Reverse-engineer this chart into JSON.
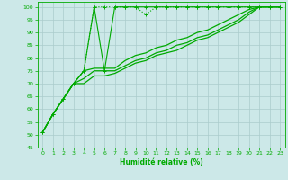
{
  "background_color": "#cce8e8",
  "grid_color": "#aacccc",
  "line_color": "#00aa00",
  "xlabel": "Humidité relative (%)",
  "ylim": [
    45,
    102
  ],
  "xlim": [
    -0.5,
    23.5
  ],
  "yticks": [
    45,
    50,
    55,
    60,
    65,
    70,
    75,
    80,
    85,
    90,
    95,
    100
  ],
  "xticks": [
    0,
    1,
    2,
    3,
    4,
    5,
    6,
    7,
    8,
    9,
    10,
    11,
    12,
    13,
    14,
    15,
    16,
    17,
    18,
    19,
    20,
    21,
    22,
    23
  ],
  "curves": [
    {
      "x": [
        0,
        1,
        2,
        3,
        4,
        5,
        6,
        7,
        8,
        9,
        10,
        11,
        12,
        13,
        14,
        15,
        16,
        17,
        18,
        19,
        20,
        21,
        22,
        23
      ],
      "y": [
        51,
        58,
        64,
        70,
        75,
        100,
        75,
        100,
        100,
        100,
        100,
        100,
        100,
        100,
        100,
        100,
        100,
        100,
        100,
        100,
        100,
        100,
        100,
        100
      ],
      "marker": "+",
      "linestyle": "-",
      "linewidth": 0.8,
      "markersize": 3
    },
    {
      "x": [
        0,
        1,
        2,
        3,
        4,
        5,
        6,
        7,
        8,
        9,
        10,
        11,
        12,
        13,
        14,
        15,
        16,
        17,
        18,
        19,
        20,
        21,
        22,
        23
      ],
      "y": [
        51,
        58,
        64,
        70,
        75,
        100,
        100,
        100,
        100,
        100,
        97,
        100,
        100,
        100,
        100,
        100,
        100,
        100,
        100,
        100,
        100,
        100,
        100,
        100
      ],
      "marker": "+",
      "linestyle": ":",
      "linewidth": 0.8,
      "markersize": 3
    },
    {
      "x": [
        0,
        1,
        2,
        3,
        4,
        5,
        6,
        7,
        8,
        9,
        10,
        11,
        12,
        13,
        14,
        15,
        16,
        17,
        18,
        19,
        20,
        21,
        22,
        23
      ],
      "y": [
        51,
        58,
        64,
        70,
        75,
        76,
        76,
        76,
        79,
        81,
        82,
        84,
        85,
        87,
        88,
        90,
        91,
        93,
        95,
        97,
        99,
        100,
        100,
        100
      ],
      "marker": null,
      "linestyle": "-",
      "linewidth": 0.9,
      "markersize": 0
    },
    {
      "x": [
        0,
        1,
        2,
        3,
        4,
        5,
        6,
        7,
        8,
        9,
        10,
        11,
        12,
        13,
        14,
        15,
        16,
        17,
        18,
        19,
        20,
        21,
        22,
        23
      ],
      "y": [
        51,
        58,
        64,
        70,
        72,
        75,
        75,
        75,
        77,
        79,
        80,
        82,
        83,
        85,
        86,
        88,
        89,
        91,
        93,
        95,
        98,
        100,
        100,
        100
      ],
      "marker": null,
      "linestyle": "-",
      "linewidth": 0.9,
      "markersize": 0
    },
    {
      "x": [
        0,
        1,
        2,
        3,
        4,
        5,
        6,
        7,
        8,
        9,
        10,
        11,
        12,
        13,
        14,
        15,
        16,
        17,
        18,
        19,
        20,
        21,
        22,
        23
      ],
      "y": [
        51,
        58,
        64,
        70,
        70,
        73,
        73,
        74,
        76,
        78,
        79,
        81,
        82,
        83,
        85,
        87,
        88,
        90,
        92,
        94,
        97,
        100,
        100,
        100
      ],
      "marker": null,
      "linestyle": "-",
      "linewidth": 0.9,
      "markersize": 0
    }
  ]
}
